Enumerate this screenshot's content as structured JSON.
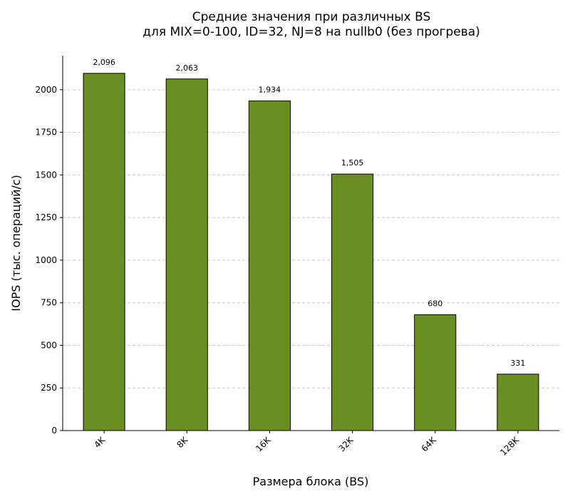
{
  "chart_data": {
    "type": "bar",
    "title": [
      "Средние значения при различных BS",
      "для MIX=0-100, ID=32, NJ=8 на nullb0 (без прогрева)"
    ],
    "xlabel": "Размера блока (BS)",
    "ylabel": "IOPS (тыс. операций/с)",
    "categories": [
      "4K",
      "8K",
      "16K",
      "32K",
      "64K",
      "128K"
    ],
    "values": [
      2096,
      2063,
      1934,
      1505,
      680,
      331
    ],
    "value_labels": [
      "2,096",
      "2,063",
      "1,934",
      "1,505",
      "680",
      "331"
    ],
    "ylim": [
      0,
      2200
    ],
    "yticks": [
      0,
      250,
      500,
      750,
      1000,
      1250,
      1500,
      1750,
      2000
    ],
    "grid": "y-dashed",
    "bar_color": "#6b8e23",
    "bar_edge_color": "#000000"
  }
}
